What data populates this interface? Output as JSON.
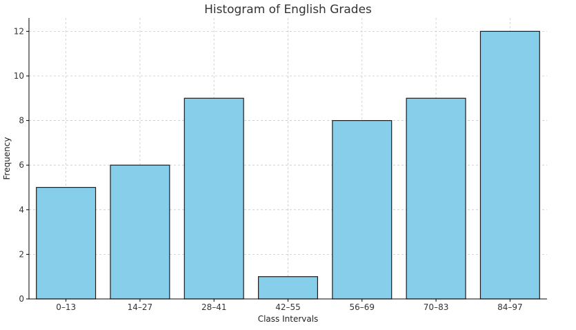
{
  "chart_data": {
    "type": "bar",
    "title": "Histogram of English Grades",
    "xlabel": "Class Intervals",
    "ylabel": "Frequency",
    "categories": [
      "0–13",
      "14–27",
      "28–41",
      "42–55",
      "56–69",
      "70–83",
      "84–97"
    ],
    "values": [
      5,
      6,
      9,
      1,
      8,
      9,
      12
    ],
    "ylim": [
      0,
      12.6
    ],
    "yticks": [
      0,
      2,
      4,
      6,
      8,
      10,
      12
    ],
    "grid": true,
    "bar_color": "#87ceeb",
    "edge_color": "#1a1a1a"
  }
}
